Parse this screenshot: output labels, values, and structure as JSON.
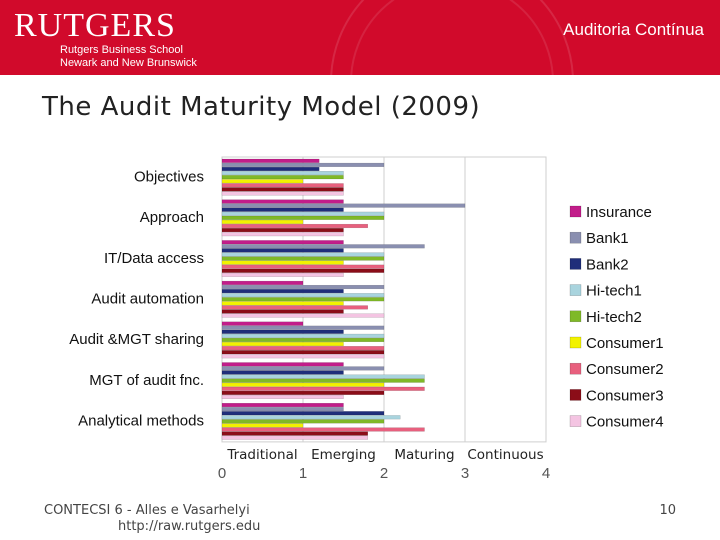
{
  "header": {
    "logo": "RUTGERS",
    "school": "Rutgers Business School",
    "campus": "Newark and New Brunswick",
    "section": "Auditoria Contínua"
  },
  "slide": {
    "title": "The Audit Maturity Model (2009)"
  },
  "footer": {
    "line1": "CONTECSI 6  -  Alles e Vasarhelyi",
    "line2": "http://raw.rutgers.edu",
    "page": "10"
  },
  "chart_data": {
    "type": "bar",
    "orientation": "horizontal",
    "title": "",
    "xlim": [
      0,
      4
    ],
    "xticks": [
      "0",
      "1",
      "2",
      "3",
      "4"
    ],
    "stage_labels": [
      "Traditional",
      "Emerging",
      "Maturing",
      "Continuous"
    ],
    "categories": [
      "Objectives",
      "Approach",
      "IT/Data access",
      "Audit automation",
      "Audit &MGT sharing",
      "MGT of audit fnc.",
      "Analytical  methods"
    ],
    "legend_position": "right",
    "series": [
      {
        "name": "Insurance",
        "color": "#c21d8a",
        "values": [
          1.2,
          1.5,
          1.5,
          1.0,
          1.0,
          1.5,
          1.5
        ]
      },
      {
        "name": "Bank1",
        "color": "#8a8fb0",
        "values": [
          2.0,
          3.0,
          2.5,
          2.0,
          2.0,
          2.0,
          1.5
        ]
      },
      {
        "name": "Bank2",
        "color": "#1f2e7a",
        "values": [
          1.2,
          1.5,
          1.5,
          1.5,
          1.5,
          1.5,
          2.0
        ]
      },
      {
        "name": "Hi-tech1",
        "color": "#a9d4de",
        "values": [
          1.5,
          2.0,
          2.0,
          2.0,
          2.0,
          2.5,
          2.2
        ]
      },
      {
        "name": "Hi-tech2",
        "color": "#7fb927",
        "values": [
          1.5,
          2.0,
          2.0,
          2.0,
          2.0,
          2.5,
          2.0
        ]
      },
      {
        "name": "Consumer1",
        "color": "#f2f200",
        "values": [
          1.0,
          1.0,
          1.5,
          1.5,
          1.5,
          2.0,
          1.0
        ]
      },
      {
        "name": "Consumer2",
        "color": "#e8607e",
        "values": [
          1.5,
          1.8,
          2.0,
          1.8,
          2.0,
          2.5,
          2.5
        ]
      },
      {
        "name": "Consumer3",
        "color": "#8b0d18",
        "values": [
          1.5,
          1.5,
          2.0,
          1.5,
          2.0,
          2.0,
          1.8
        ]
      },
      {
        "name": "Consumer4",
        "color": "#f4c4e2",
        "values": [
          1.5,
          1.5,
          1.5,
          2.0,
          2.0,
          1.5,
          1.8
        ]
      }
    ]
  }
}
